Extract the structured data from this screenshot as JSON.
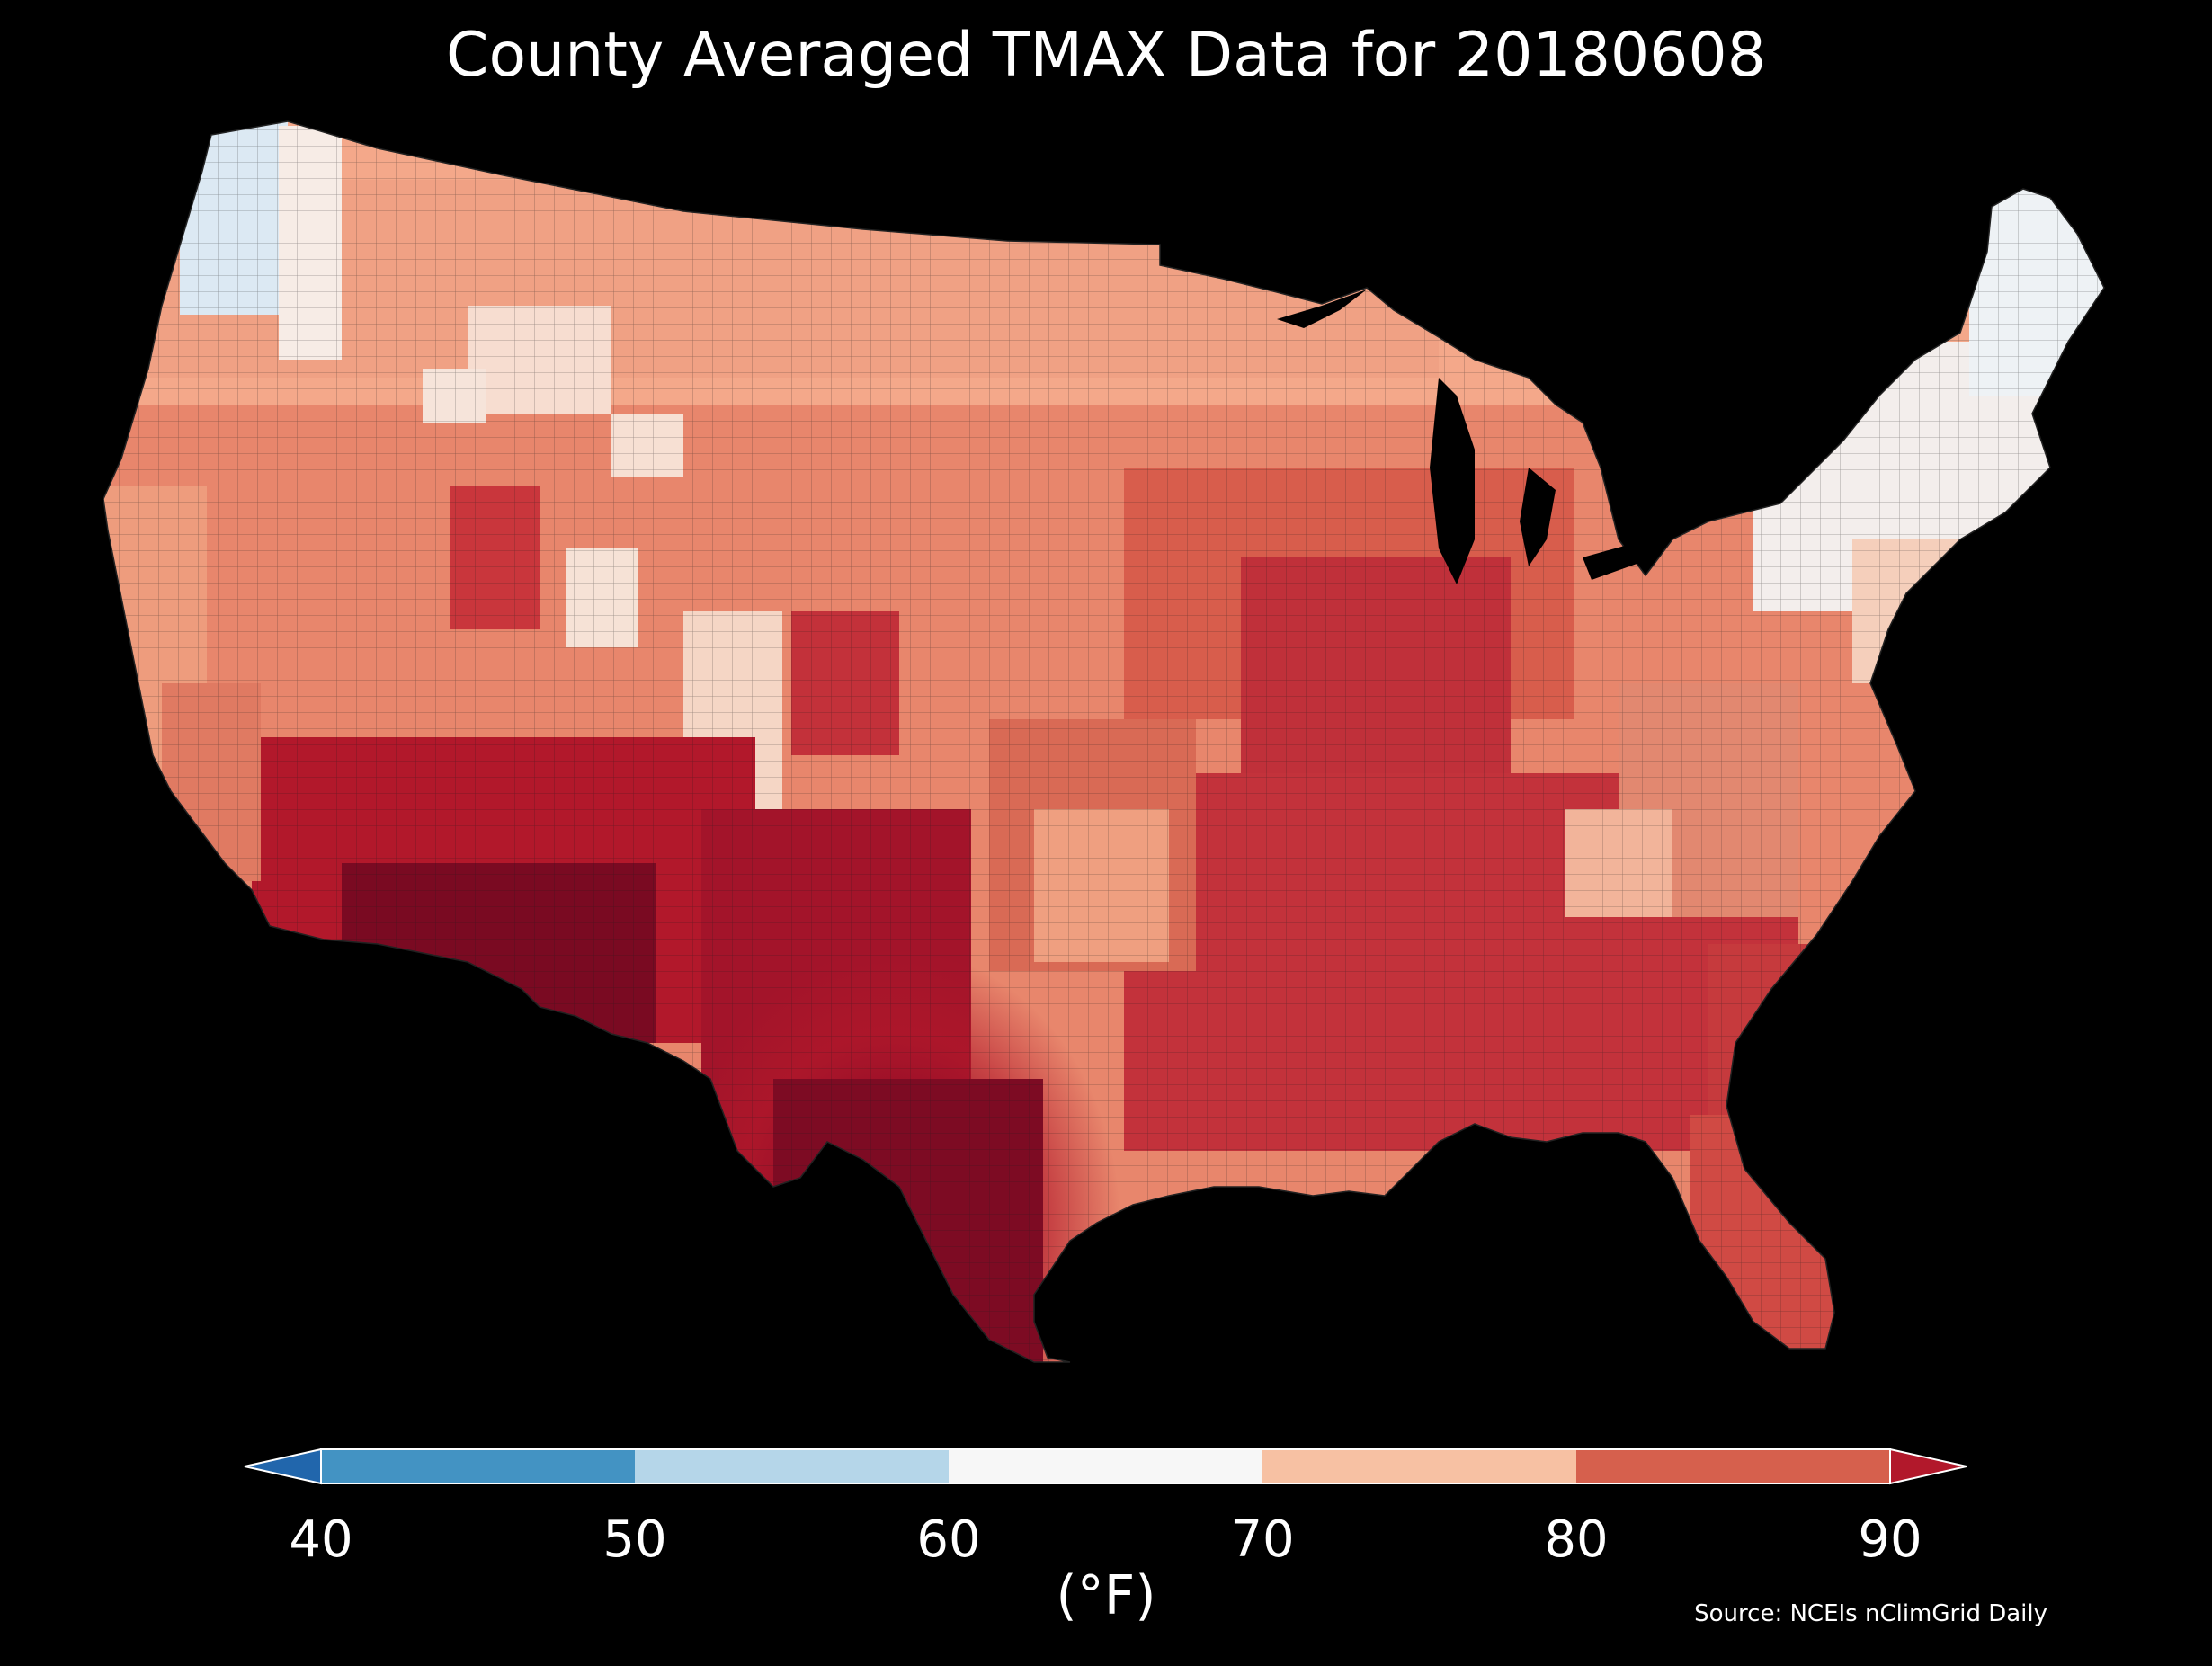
{
  "title": "County Averaged TMAX Data for 20180608",
  "map": {
    "region": "Contiguous United States",
    "units": "county",
    "color_note": "warmest in south-central Texas/southern Arizona; coolest in western Washington and northern Maine"
  },
  "colorbar": {
    "ticks": [
      "40",
      "50",
      "60",
      "70",
      "80",
      "90"
    ],
    "unit_label": "(°F)",
    "extend": "both",
    "bins": [
      {
        "range": [
          40,
          50
        ],
        "color": "#4393c3"
      },
      {
        "range": [
          50,
          60
        ],
        "color": "#b5d6e9"
      },
      {
        "range": [
          60,
          70
        ],
        "color": "#f7f7f7"
      },
      {
        "range": [
          70,
          80
        ],
        "color": "#f7c1a3"
      },
      {
        "range": [
          80,
          90
        ],
        "color": "#d6604d"
      }
    ],
    "under_color": "#2166ac",
    "over_color": "#b2182b"
  },
  "source": "Source: NCEIs nClimGrid Daily"
}
